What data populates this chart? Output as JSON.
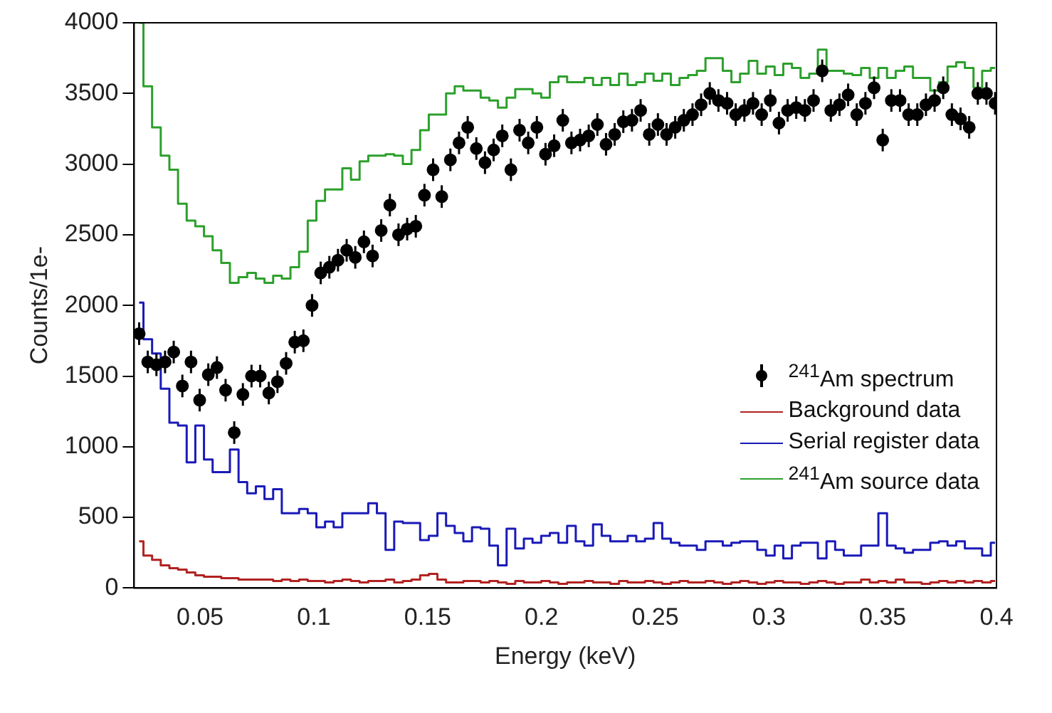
{
  "chart_data": {
    "type": "step",
    "xlabel": "Energy (keV)",
    "ylabel": "Counts/1e-",
    "x": [
      0.0232,
      0.027,
      0.0308,
      0.0346,
      0.0384,
      0.0422,
      0.046,
      0.0498,
      0.0536,
      0.0574,
      0.0612,
      0.065,
      0.0688,
      0.0726,
      0.0764,
      0.0802,
      0.084,
      0.0878,
      0.0916,
      0.0954,
      0.0992,
      0.103,
      0.1068,
      0.1106,
      0.1144,
      0.1182,
      0.122,
      0.1258,
      0.1296,
      0.1334,
      0.1372,
      0.141,
      0.1448,
      0.1486,
      0.1524,
      0.1562,
      0.16,
      0.1638,
      0.1676,
      0.1714,
      0.1752,
      0.179,
      0.1828,
      0.1866,
      0.1904,
      0.1942,
      0.198,
      0.2018,
      0.2056,
      0.2094,
      0.2132,
      0.217,
      0.2208,
      0.2246,
      0.2284,
      0.2322,
      0.236,
      0.2398,
      0.2436,
      0.2474,
      0.2512,
      0.255,
      0.2588,
      0.2626,
      0.2664,
      0.2702,
      0.274,
      0.2778,
      0.2816,
      0.2854,
      0.2892,
      0.293,
      0.2968,
      0.3006,
      0.3044,
      0.3082,
      0.312,
      0.3158,
      0.3196,
      0.3234,
      0.3272,
      0.331,
      0.3348,
      0.3386,
      0.3424,
      0.3462,
      0.35,
      0.3538,
      0.3576,
      0.3614,
      0.3652,
      0.369,
      0.3728,
      0.3766,
      0.3804,
      0.3842,
      0.388,
      0.3918,
      0.3956,
      0.3994
    ],
    "series": [
      {
        "name": "$^{241}$Am spectrum",
        "type": "scatter",
        "marker": "circle",
        "color": "#000000",
        "values": [
          1800,
          1600,
          1580,
          1600,
          1670,
          1430,
          1600,
          1330,
          1510,
          1560,
          1400,
          1100,
          1370,
          1500,
          1500,
          1380,
          1460,
          1590,
          1740,
          1750,
          2000,
          2230,
          2270,
          2320,
          2390,
          2340,
          2450,
          2350,
          2530,
          2710,
          2500,
          2540,
          2560,
          2780,
          2960,
          2770,
          3030,
          3150,
          3260,
          3110,
          3010,
          3100,
          3200,
          2960,
          3240,
          3150,
          3260,
          3070,
          3130,
          3310,
          3150,
          3170,
          3200,
          3280,
          3140,
          3210,
          3300,
          3310,
          3380,
          3210,
          3280,
          3210,
          3260,
          3310,
          3350,
          3420,
          3500,
          3450,
          3430,
          3350,
          3380,
          3430,
          3350,
          3450,
          3290,
          3380,
          3400,
          3380,
          3450,
          3660,
          3380,
          3420,
          3490,
          3350,
          3430,
          3540,
          3170,
          3450,
          3450,
          3350,
          3350,
          3420,
          3450,
          3540,
          3350,
          3320,
          3260,
          3500,
          3500,
          3430
        ],
        "errors": [
          80,
          80,
          80,
          80,
          80,
          80,
          80,
          80,
          80,
          80,
          80,
          80,
          80,
          80,
          80,
          80,
          80,
          80,
          80,
          80,
          80,
          80,
          80,
          80,
          80,
          80,
          80,
          80,
          80,
          80,
          80,
          80,
          80,
          80,
          80,
          80,
          80,
          80,
          80,
          80,
          80,
          80,
          80,
          80,
          80,
          80,
          80,
          80,
          80,
          80,
          80,
          80,
          80,
          80,
          80,
          80,
          80,
          80,
          80,
          80,
          80,
          80,
          80,
          80,
          80,
          80,
          80,
          80,
          80,
          80,
          80,
          80,
          80,
          80,
          80,
          80,
          80,
          80,
          80,
          80,
          80,
          80,
          80,
          80,
          80,
          80,
          80,
          80,
          80,
          80,
          80,
          80,
          80,
          80,
          80,
          80,
          80,
          80,
          80,
          80
        ]
      },
      {
        "name": "Background data",
        "color": "#b22222",
        "values": [
          330,
          230,
          200,
          160,
          140,
          130,
          110,
          90,
          80,
          80,
          70,
          70,
          60,
          60,
          60,
          60,
          50,
          60,
          50,
          60,
          50,
          50,
          40,
          50,
          60,
          50,
          40,
          50,
          50,
          60,
          40,
          50,
          60,
          90,
          100,
          60,
          40,
          40,
          50,
          50,
          40,
          50,
          40,
          30,
          50,
          40,
          40,
          50,
          40,
          30,
          40,
          40,
          50,
          40,
          40,
          30,
          50,
          40,
          40,
          50,
          40,
          30,
          40,
          50,
          40,
          40,
          50,
          40,
          30,
          40,
          50,
          40,
          30,
          40,
          50,
          40,
          40,
          30,
          40,
          50,
          40,
          30,
          40,
          40,
          60,
          40,
          50,
          40,
          60,
          40,
          40,
          30,
          40,
          50,
          40,
          50,
          40,
          50,
          40,
          50
        ]
      },
      {
        "name": "Serial register data",
        "color": "#1a1ab8",
        "values": [
          2020,
          1760,
          1660,
          1410,
          1170,
          1150,
          890,
          1150,
          910,
          820,
          820,
          980,
          750,
          670,
          720,
          630,
          700,
          530,
          530,
          560,
          530,
          430,
          470,
          430,
          530,
          530,
          530,
          600,
          530,
          270,
          470,
          460,
          460,
          340,
          370,
          530,
          440,
          390,
          330,
          430,
          420,
          300,
          160,
          420,
          280,
          350,
          320,
          370,
          390,
          320,
          440,
          330,
          300,
          450,
          370,
          330,
          330,
          370,
          330,
          350,
          460,
          350,
          320,
          300,
          300,
          270,
          330,
          330,
          300,
          320,
          330,
          330,
          270,
          230,
          300,
          210,
          300,
          320,
          320,
          210,
          330,
          270,
          230,
          230,
          300,
          300,
          530,
          300,
          280,
          250,
          270,
          270,
          320,
          330,
          300,
          330,
          280,
          280,
          230,
          320
        ]
      },
      {
        "name": "$^{241}$Am source data",
        "color": "#2ca02c",
        "values": [
          4000,
          3550,
          3260,
          3060,
          2960,
          2720,
          2600,
          2560,
          2490,
          2390,
          2300,
          2160,
          2200,
          2230,
          2190,
          2160,
          2210,
          2190,
          2270,
          2380,
          2600,
          2740,
          2820,
          2820,
          2970,
          2890,
          3020,
          3060,
          3060,
          3070,
          3060,
          3000,
          3100,
          3240,
          3350,
          3350,
          3500,
          3550,
          3520,
          3520,
          3470,
          3450,
          3400,
          3470,
          3530,
          3530,
          3500,
          3470,
          3580,
          3620,
          3580,
          3580,
          3610,
          3560,
          3610,
          3560,
          3640,
          3560,
          3580,
          3640,
          3590,
          3640,
          3560,
          3610,
          3630,
          3660,
          3750,
          3750,
          3660,
          3580,
          3640,
          3730,
          3640,
          3690,
          3630,
          3710,
          3680,
          3610,
          3640,
          3810,
          3660,
          3660,
          3640,
          3630,
          3680,
          3610,
          3680,
          3610,
          3660,
          3690,
          3610,
          3610,
          3520,
          3580,
          3690,
          3720,
          3680,
          3540,
          3660,
          3680
        ]
      }
    ],
    "xlim": [
      0.021,
      0.4
    ],
    "xticks": [
      0.05,
      0.1,
      0.15,
      0.2,
      0.25,
      0.3,
      0.35,
      0.4
    ],
    "ylim": [
      0,
      4000
    ],
    "yticks": [
      0,
      500,
      1000,
      1500,
      2000,
      2500,
      3000,
      3500,
      4000
    ],
    "legend": "bottom right",
    "line_style": "solid"
  }
}
